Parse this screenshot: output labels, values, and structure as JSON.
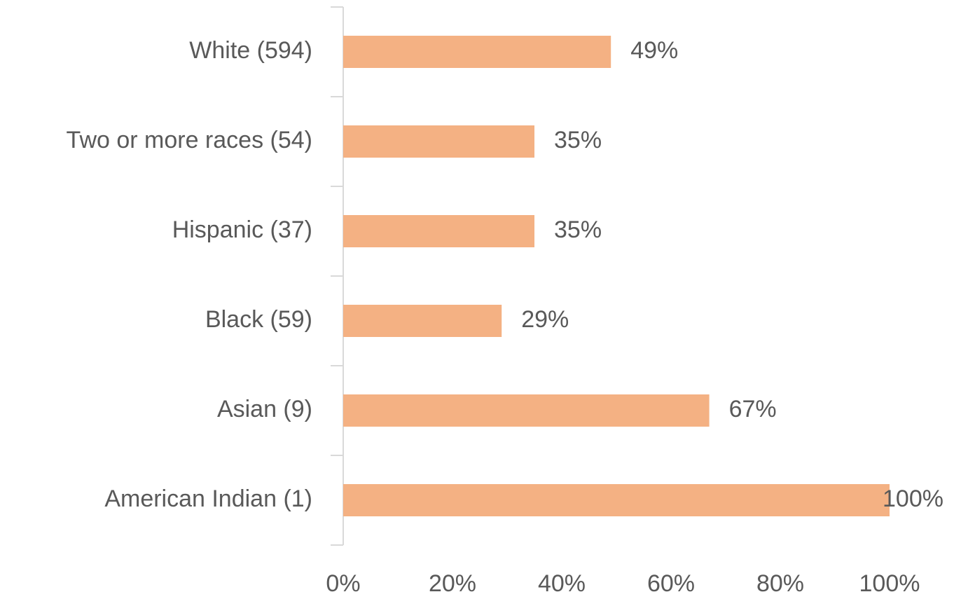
{
  "chart_data": {
    "type": "bar",
    "orientation": "horizontal",
    "categories": [
      "White (594)",
      "Two or more races (54)",
      "Hispanic (37)",
      "Black (59)",
      "Asian (9)",
      "American Indian (1)"
    ],
    "values": [
      49,
      35,
      35,
      29,
      67,
      100
    ],
    "value_labels": [
      "49%",
      "35%",
      "35%",
      "29%",
      "67%",
      "100%"
    ],
    "color": "#f4b183",
    "xlim": [
      0,
      100
    ],
    "xticks": [
      {
        "value": 0,
        "label": "0%"
      },
      {
        "value": 20,
        "label": "20%"
      },
      {
        "value": 40,
        "label": "40%"
      },
      {
        "value": 60,
        "label": "60%"
      },
      {
        "value": 80,
        "label": "80%"
      },
      {
        "value": 100,
        "label": "100%"
      }
    ],
    "grid": false
  }
}
